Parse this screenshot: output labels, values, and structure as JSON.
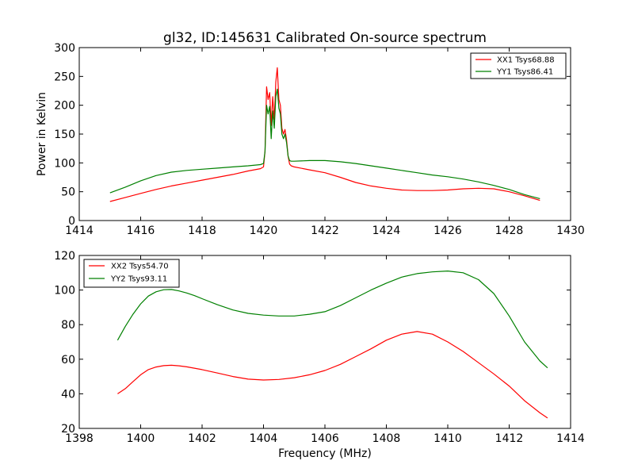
{
  "chart_data": [
    {
      "type": "line",
      "title": "gl32, ID:145631 Calibrated On-source spectrum",
      "xlabel": "",
      "ylabel": "Power in Kelvin",
      "xlim": [
        1414,
        1430
      ],
      "ylim": [
        0,
        300
      ],
      "xticks": [
        1414,
        1416,
        1418,
        1420,
        1422,
        1424,
        1426,
        1428,
        1430
      ],
      "yticks": [
        0,
        50,
        100,
        150,
        200,
        250,
        300
      ],
      "legend_position": "top-right",
      "series": [
        {
          "name": "XX1 Tsys68.88",
          "color": "#ff0000",
          "x": [
            1415.0,
            1415.5,
            1416.0,
            1416.5,
            1417.0,
            1417.5,
            1418.0,
            1418.5,
            1419.0,
            1419.5,
            1419.9,
            1420.0,
            1420.05,
            1420.1,
            1420.15,
            1420.2,
            1420.25,
            1420.3,
            1420.35,
            1420.4,
            1420.45,
            1420.5,
            1420.55,
            1420.6,
            1420.65,
            1420.7,
            1420.75,
            1420.8,
            1420.85,
            1420.9,
            1421.0,
            1421.5,
            1422.0,
            1422.5,
            1423.0,
            1423.5,
            1424.0,
            1424.5,
            1425.0,
            1425.5,
            1426.0,
            1426.5,
            1427.0,
            1427.5,
            1428.0,
            1428.5,
            1429.0
          ],
          "values": [
            33,
            40,
            47,
            54,
            60,
            65,
            70,
            75,
            80,
            86,
            90,
            93,
            120,
            232,
            210,
            222,
            165,
            215,
            175,
            240,
            265,
            210,
            200,
            160,
            150,
            158,
            140,
            112,
            98,
            95,
            93,
            88,
            83,
            75,
            66,
            60,
            56,
            53,
            52,
            52,
            53,
            55,
            56,
            55,
            50,
            43,
            35
          ]
        },
        {
          "name": "YY1 Tsys86.41",
          "color": "#008000",
          "x": [
            1415.0,
            1415.5,
            1416.0,
            1416.5,
            1417.0,
            1417.5,
            1418.0,
            1418.5,
            1419.0,
            1419.5,
            1419.9,
            1420.0,
            1420.05,
            1420.1,
            1420.15,
            1420.2,
            1420.25,
            1420.3,
            1420.35,
            1420.4,
            1420.45,
            1420.5,
            1420.55,
            1420.6,
            1420.65,
            1420.7,
            1420.75,
            1420.8,
            1420.85,
            1420.9,
            1421.0,
            1421.5,
            1422.0,
            1422.5,
            1423.0,
            1423.5,
            1424.0,
            1424.5,
            1425.0,
            1425.5,
            1426.0,
            1426.5,
            1427.0,
            1427.5,
            1428.0,
            1428.5,
            1429.0
          ],
          "values": [
            48,
            58,
            69,
            78,
            84,
            87,
            89,
            91,
            93,
            95,
            97,
            99,
            120,
            200,
            185,
            198,
            142,
            190,
            160,
            215,
            228,
            195,
            185,
            150,
            142,
            150,
            135,
            112,
            104,
            103,
            103,
            104,
            104,
            102,
            99,
            95,
            91,
            87,
            83,
            79,
            76,
            72,
            67,
            61,
            54,
            45,
            38
          ]
        }
      ]
    },
    {
      "type": "line",
      "title": "",
      "xlabel": "Frequency (MHz)",
      "ylabel": "",
      "xlim": [
        1398,
        1414
      ],
      "ylim": [
        20,
        120
      ],
      "xticks": [
        1398,
        1400,
        1402,
        1404,
        1406,
        1408,
        1410,
        1412,
        1414
      ],
      "yticks": [
        20,
        40,
        60,
        80,
        100,
        120
      ],
      "legend_position": "top-left",
      "series": [
        {
          "name": "XX2 Tsys54.70",
          "color": "#ff0000",
          "x": [
            1399.25,
            1399.5,
            1399.75,
            1400.0,
            1400.25,
            1400.5,
            1400.75,
            1401.0,
            1401.25,
            1401.5,
            1401.75,
            1402.0,
            1402.5,
            1403.0,
            1403.5,
            1404.0,
            1404.5,
            1405.0,
            1405.5,
            1406.0,
            1406.5,
            1407.0,
            1407.5,
            1408.0,
            1408.5,
            1409.0,
            1409.5,
            1410.0,
            1410.5,
            1411.0,
            1411.5,
            1412.0,
            1412.5,
            1413.0,
            1413.25
          ],
          "values": [
            40,
            43,
            47,
            51,
            54,
            55.5,
            56.3,
            56.5,
            56.2,
            55.6,
            54.8,
            54,
            52,
            50,
            48.5,
            48,
            48.3,
            49.3,
            51,
            53.5,
            57,
            61.5,
            66,
            71,
            74.5,
            76,
            74.5,
            70,
            64.5,
            58,
            51.5,
            44.5,
            36,
            29,
            26
          ]
        },
        {
          "name": "YY2 Tsys93.11",
          "color": "#008000",
          "x": [
            1399.25,
            1399.5,
            1399.75,
            1400.0,
            1400.25,
            1400.5,
            1400.75,
            1401.0,
            1401.25,
            1401.5,
            1401.75,
            1402.0,
            1402.5,
            1403.0,
            1403.5,
            1404.0,
            1404.5,
            1405.0,
            1405.5,
            1406.0,
            1406.5,
            1407.0,
            1407.5,
            1408.0,
            1408.5,
            1409.0,
            1409.5,
            1410.0,
            1410.5,
            1411.0,
            1411.5,
            1412.0,
            1412.5,
            1413.0,
            1413.25
          ],
          "values": [
            71,
            79,
            86,
            92,
            96.5,
            99,
            100.2,
            100.3,
            99.5,
            98.3,
            96.8,
            95,
            91.5,
            88.5,
            86.5,
            85.5,
            85,
            85,
            86,
            87.5,
            91,
            95.5,
            100,
            104,
            107.5,
            109.5,
            110.5,
            111,
            110,
            106,
            98,
            85,
            70,
            59,
            55
          ]
        }
      ]
    }
  ]
}
